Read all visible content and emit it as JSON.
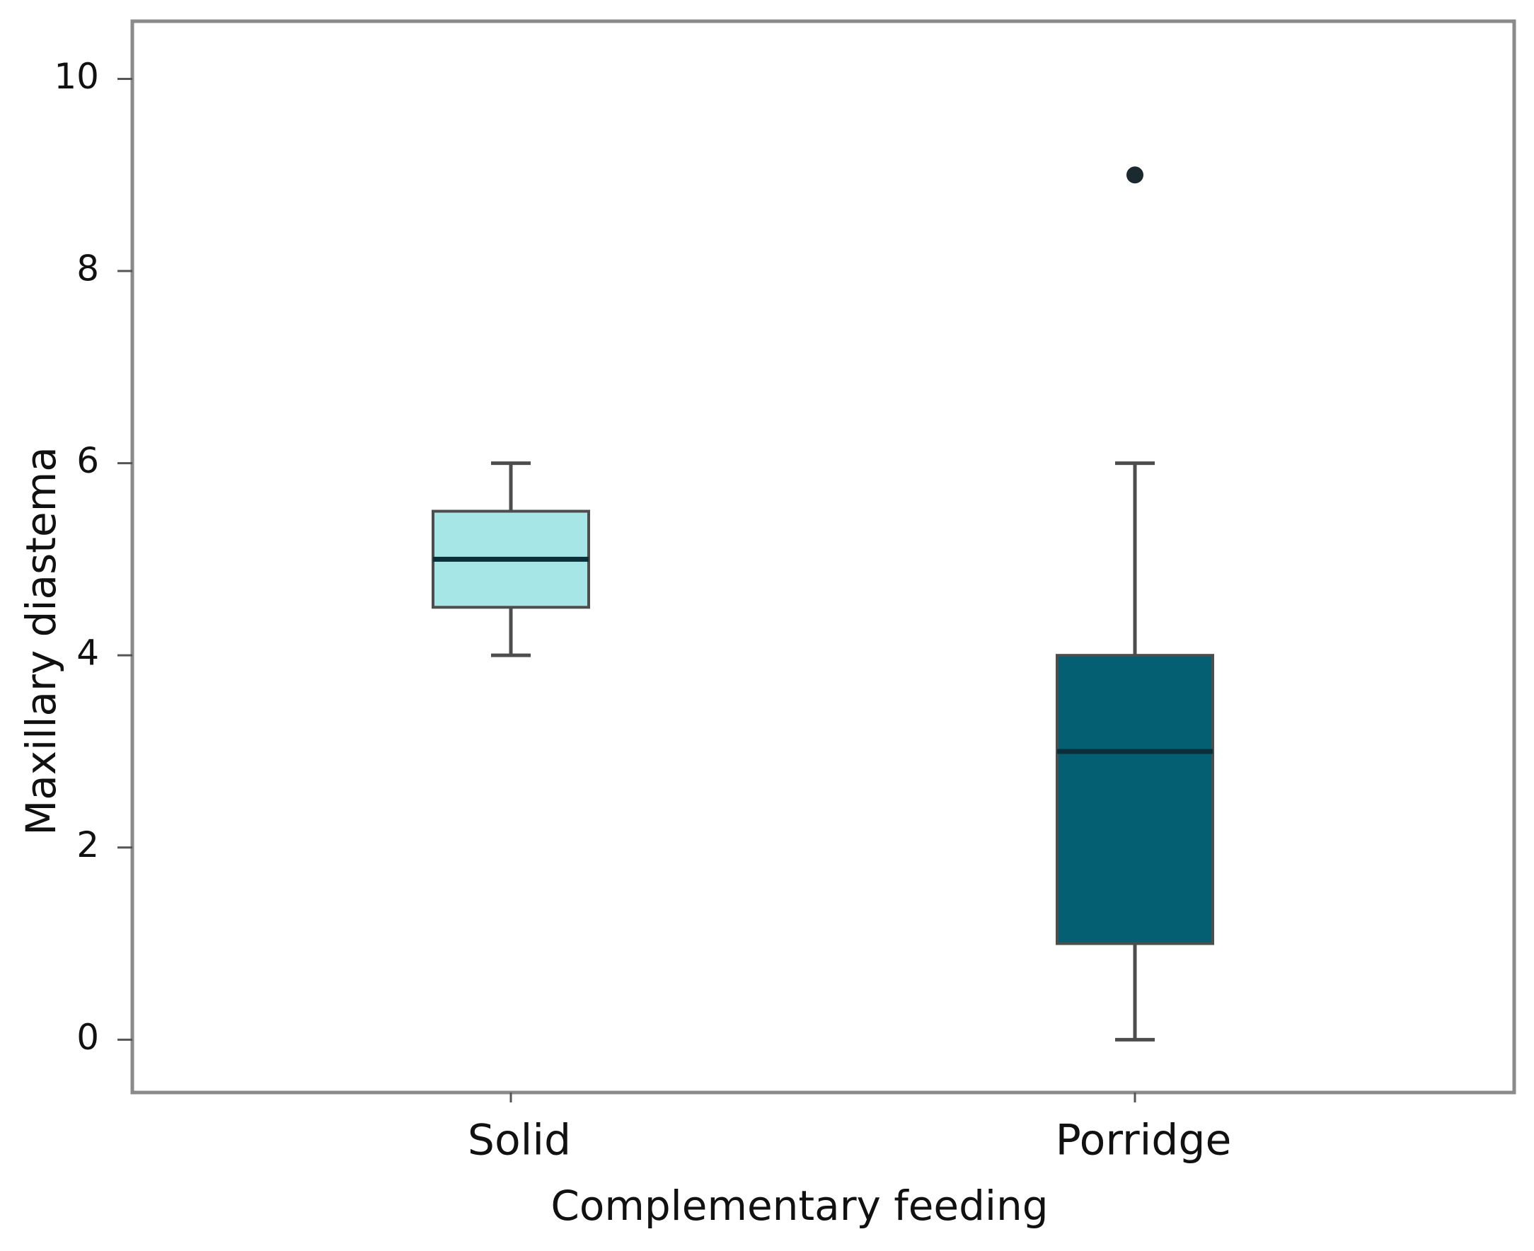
{
  "chart_data": {
    "type": "box",
    "x_label": "Complementary feeding",
    "y_label": "Maxillary diastema",
    "categories": [
      "Solid",
      "Porridge"
    ],
    "min": [
      4,
      0
    ],
    "q1": [
      4.5,
      1
    ],
    "median": [
      5,
      3
    ],
    "q3": [
      5.5,
      4
    ],
    "max": [
      6,
      6
    ],
    "outliers": [
      [],
      [
        9
      ]
    ],
    "colors": [
      "#a6e6e6",
      "#045f73"
    ],
    "ylim": [
      -0.55,
      10.6
    ],
    "yticks": [
      0,
      2,
      4,
      6,
      8,
      10
    ],
    "grid": false
  }
}
